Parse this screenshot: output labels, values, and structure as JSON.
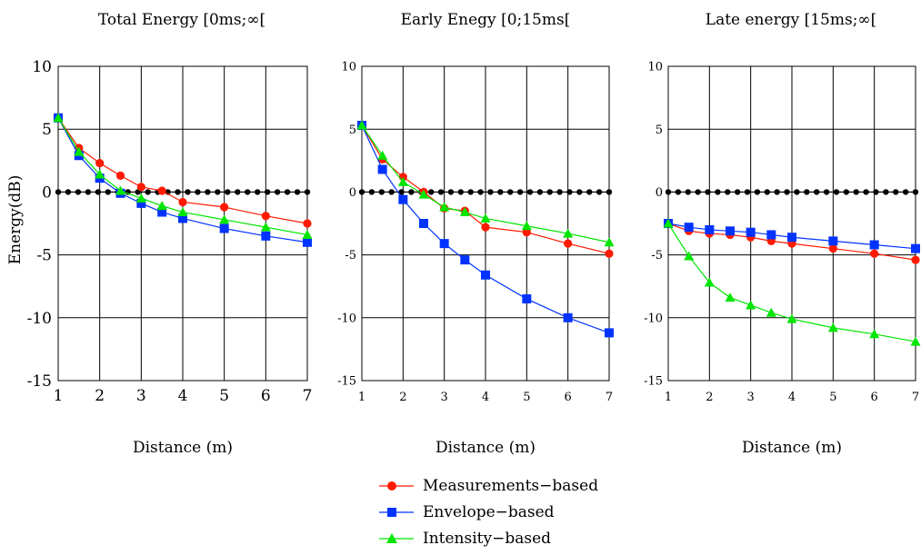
{
  "chart_data": [
    {
      "type": "line",
      "title": "Total Energy [0ms;∞[",
      "xlabel": "Distance (m)",
      "ylabel": "Energy(dB)",
      "xlim": [
        1,
        7
      ],
      "ylim": [
        -15,
        10
      ],
      "xticks": [
        "1",
        "2",
        "3",
        "4",
        "5",
        "6",
        "7"
      ],
      "yticks": [
        "10",
        "5",
        "0",
        "-5",
        "-10",
        "-15"
      ],
      "grid": true,
      "x": [
        1,
        1.5,
        2,
        2.5,
        3,
        3.5,
        4,
        5,
        6,
        7
      ],
      "series": [
        {
          "name": "Measurements-based",
          "values": [
            5.9,
            3.5,
            2.3,
            1.3,
            0.4,
            0.1,
            -0.8,
            -1.2,
            -1.9,
            -2.5
          ]
        },
        {
          "name": "Envelope-based",
          "values": [
            5.9,
            2.9,
            1.1,
            -0.1,
            -0.9,
            -1.6,
            -2.1,
            -2.9,
            -3.5,
            -4.0
          ]
        },
        {
          "name": "Intensity-based",
          "values": [
            5.9,
            3.2,
            1.4,
            0.1,
            -0.5,
            -1.1,
            -1.6,
            -2.2,
            -2.8,
            -3.4
          ]
        }
      ],
      "reference_line": {
        "value": 0,
        "points": 26
      }
    },
    {
      "type": "line",
      "title": "Early Enegy [0;15ms[",
      "xlabel": "Distance (m)",
      "ylabel": "",
      "xlim": [
        1,
        7
      ],
      "ylim": [
        -15,
        10
      ],
      "xticks": [
        "1",
        "2",
        "3",
        "4",
        "5",
        "6",
        "7"
      ],
      "yticks": [
        "10",
        "5",
        "0",
        "-5",
        "-10",
        "-15"
      ],
      "grid": true,
      "x": [
        1,
        1.5,
        2,
        2.5,
        3,
        3.5,
        4,
        5,
        6,
        7
      ],
      "series": [
        {
          "name": "Measurements-based",
          "values": [
            5.3,
            2.6,
            1.2,
            0.0,
            -1.3,
            -1.5,
            -2.8,
            -3.2,
            -4.1,
            -4.9
          ]
        },
        {
          "name": "Envelope-based",
          "values": [
            5.3,
            1.8,
            -0.6,
            -2.5,
            -4.1,
            -5.4,
            -6.6,
            -8.5,
            -10.0,
            -11.2
          ]
        },
        {
          "name": "Intensity-based",
          "values": [
            5.3,
            2.9,
            0.8,
            -0.2,
            -1.2,
            -1.6,
            -2.1,
            -2.7,
            -3.3,
            -4.0
          ]
        }
      ],
      "reference_line": {
        "value": 0,
        "points": 26
      }
    },
    {
      "type": "line",
      "title": "Late energy [15ms;∞[",
      "xlabel": "Distance (m)",
      "ylabel": "",
      "xlim": [
        1,
        7
      ],
      "ylim": [
        -15,
        10
      ],
      "xticks": [
        "1",
        "2",
        "3",
        "4",
        "5",
        "6",
        "7"
      ],
      "yticks": [
        "10",
        "5",
        "0",
        "-5",
        "-10",
        "-15"
      ],
      "grid": true,
      "x": [
        1,
        1.5,
        2,
        2.5,
        3,
        3.5,
        4,
        5,
        6,
        7
      ],
      "series": [
        {
          "name": "Measurements-based",
          "values": [
            -2.5,
            -3.1,
            -3.3,
            -3.4,
            -3.6,
            -3.9,
            -4.1,
            -4.5,
            -4.9,
            -5.4
          ]
        },
        {
          "name": "Envelope-based",
          "values": [
            -2.5,
            -2.8,
            -3.0,
            -3.1,
            -3.2,
            -3.4,
            -3.6,
            -3.9,
            -4.2,
            -4.5
          ]
        },
        {
          "name": "Intensity-based",
          "values": [
            -2.5,
            -5.1,
            -7.2,
            -8.4,
            -9.0,
            -9.6,
            -10.1,
            -10.8,
            -11.3,
            -11.9
          ]
        }
      ],
      "reference_line": {
        "value": 0,
        "points": 26
      }
    }
  ],
  "legend": {
    "placement": "bottom-center",
    "items": [
      {
        "label": "Measurements−based",
        "color": "#ff1a00",
        "marker": "circle"
      },
      {
        "label": "Envelope−based",
        "color": "#0033ff",
        "marker": "square"
      },
      {
        "label": "Intensity−based",
        "color": "#00e600",
        "marker": "triangle"
      }
    ]
  },
  "colors": {
    "measurements": "#ff1a00",
    "envelope": "#0033ff",
    "intensity": "#00e600",
    "reference": "#000000",
    "grid": "#000000"
  }
}
